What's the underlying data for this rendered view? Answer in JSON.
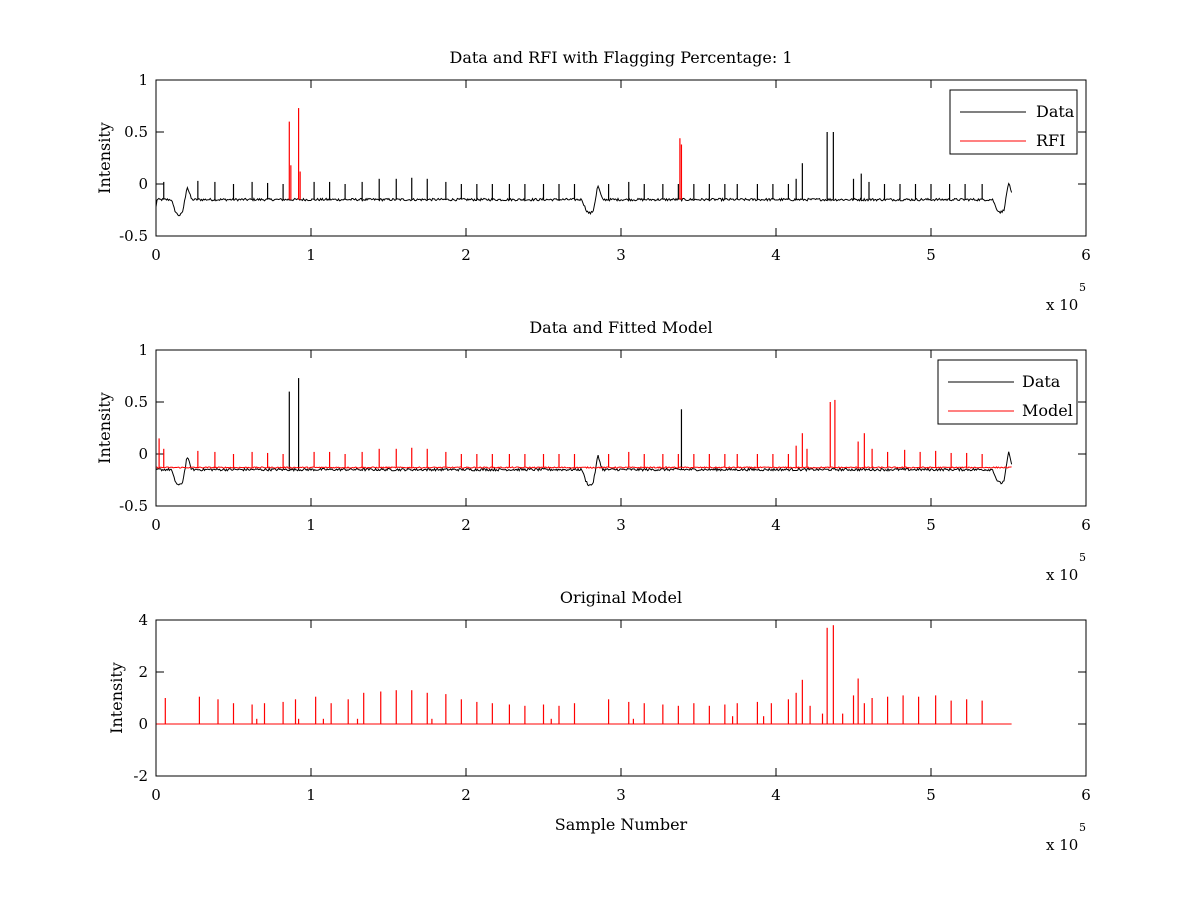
{
  "chart_data": [
    {
      "type": "line",
      "title": "Data and RFI with Flagging Percentage: 1",
      "xlabel": "",
      "ylabel": "Intensity",
      "xlim": [
        0,
        6
      ],
      "ylim": [
        -0.5,
        1
      ],
      "xticks": [
        "0",
        "1",
        "2",
        "3",
        "4",
        "5",
        "6"
      ],
      "yticks": [
        "-0.5",
        "0",
        "0.5",
        "1"
      ],
      "x_multiplier": "x 10",
      "x_exponent": "5",
      "grid": false,
      "legend_position": "top-right",
      "baseline": -0.15,
      "series": [
        {
          "name": "Data",
          "color": "#000000",
          "spikes": [
            [
              0.05,
              0.02
            ],
            [
              0.27,
              0.03
            ],
            [
              0.38,
              0.02
            ],
            [
              0.5,
              0.0
            ],
            [
              0.62,
              0.02
            ],
            [
              0.72,
              0.01
            ],
            [
              0.82,
              0.0
            ],
            [
              1.02,
              0.02
            ],
            [
              1.12,
              0.02
            ],
            [
              1.22,
              0.0
            ],
            [
              1.33,
              0.02
            ],
            [
              1.44,
              0.05
            ],
            [
              1.55,
              0.05
            ],
            [
              1.65,
              0.06
            ],
            [
              1.75,
              0.05
            ],
            [
              1.87,
              0.02
            ],
            [
              1.97,
              0.0
            ],
            [
              2.07,
              0.0
            ],
            [
              2.17,
              0.0
            ],
            [
              2.28,
              0.0
            ],
            [
              2.38,
              0.0
            ],
            [
              2.5,
              0.0
            ],
            [
              2.6,
              0.0
            ],
            [
              2.7,
              0.0
            ],
            [
              2.92,
              0.0
            ],
            [
              3.05,
              0.02
            ],
            [
              3.15,
              0.0
            ],
            [
              3.27,
              0.0
            ],
            [
              3.37,
              0.0
            ],
            [
              3.47,
              0.0
            ],
            [
              3.57,
              0.0
            ],
            [
              3.67,
              0.0
            ],
            [
              3.75,
              0.0
            ],
            [
              3.88,
              0.0
            ],
            [
              3.98,
              0.0
            ],
            [
              4.08,
              0.0
            ],
            [
              4.13,
              0.05
            ],
            [
              4.17,
              0.2
            ],
            [
              4.33,
              0.5
            ],
            [
              4.37,
              0.5
            ],
            [
              4.5,
              0.05
            ],
            [
              4.55,
              0.1
            ],
            [
              4.6,
              0.02
            ],
            [
              4.7,
              0.0
            ],
            [
              4.8,
              0.0
            ],
            [
              4.9,
              0.0
            ],
            [
              5.0,
              0.0
            ],
            [
              5.12,
              0.0
            ],
            [
              5.22,
              0.0
            ],
            [
              5.33,
              0.0
            ]
          ],
          "dips": [
            [
              0.15,
              -0.3
            ],
            [
              2.8,
              -0.28
            ],
            [
              5.45,
              -0.27
            ]
          ],
          "humps": [
            [
              0.2,
              -0.02
            ],
            [
              2.85,
              -0.01
            ],
            [
              5.5,
              0.02
            ]
          ]
        },
        {
          "name": "RFI",
          "color": "#ff0000",
          "spikes": [
            [
              0.86,
              0.6
            ],
            [
              0.87,
              0.18
            ],
            [
              0.92,
              0.73
            ],
            [
              0.93,
              0.12
            ],
            [
              3.38,
              0.44
            ],
            [
              3.39,
              0.38
            ]
          ]
        }
      ]
    },
    {
      "type": "line",
      "title": "Data and Fitted Model",
      "xlabel": "",
      "ylabel": "Intensity",
      "xlim": [
        0,
        6
      ],
      "ylim": [
        -0.5,
        1
      ],
      "xticks": [
        "0",
        "1",
        "2",
        "3",
        "4",
        "5",
        "6"
      ],
      "yticks": [
        "-0.5",
        "0",
        "0.5",
        "1"
      ],
      "x_multiplier": "x 10",
      "x_exponent": "5",
      "grid": false,
      "legend_position": "top-right",
      "baseline": -0.15,
      "series": [
        {
          "name": "Data",
          "color": "#000000",
          "spikes": [
            [
              0.86,
              0.6
            ],
            [
              0.92,
              0.73
            ],
            [
              3.39,
              0.43
            ]
          ],
          "dips": [
            [
              0.15,
              -0.3
            ],
            [
              2.8,
              -0.3
            ],
            [
              5.45,
              -0.28
            ]
          ],
          "humps": [
            [
              0.2,
              -0.02
            ],
            [
              2.85,
              -0.01
            ],
            [
              5.5,
              0.02
            ]
          ]
        },
        {
          "name": "Model",
          "color": "#ff0000",
          "baseline": -0.13,
          "spikes": [
            [
              0.02,
              0.15
            ],
            [
              0.05,
              0.05
            ],
            [
              0.27,
              0.03
            ],
            [
              0.38,
              0.02
            ],
            [
              0.5,
              0.0
            ],
            [
              0.62,
              0.02
            ],
            [
              0.72,
              0.01
            ],
            [
              0.82,
              0.0
            ],
            [
              1.02,
              0.02
            ],
            [
              1.12,
              0.02
            ],
            [
              1.22,
              0.0
            ],
            [
              1.33,
              0.02
            ],
            [
              1.44,
              0.05
            ],
            [
              1.55,
              0.05
            ],
            [
              1.65,
              0.06
            ],
            [
              1.75,
              0.05
            ],
            [
              1.87,
              0.02
            ],
            [
              1.97,
              0.0
            ],
            [
              2.07,
              0.0
            ],
            [
              2.17,
              0.0
            ],
            [
              2.28,
              0.0
            ],
            [
              2.38,
              0.0
            ],
            [
              2.5,
              0.0
            ],
            [
              2.6,
              0.0
            ],
            [
              2.7,
              0.0
            ],
            [
              2.92,
              0.0
            ],
            [
              3.05,
              0.02
            ],
            [
              3.15,
              0.0
            ],
            [
              3.27,
              0.0
            ],
            [
              3.37,
              0.0
            ],
            [
              3.47,
              0.0
            ],
            [
              3.57,
              0.0
            ],
            [
              3.67,
              0.0
            ],
            [
              3.75,
              0.0
            ],
            [
              3.88,
              0.0
            ],
            [
              3.98,
              0.0
            ],
            [
              4.08,
              0.0
            ],
            [
              4.13,
              0.08
            ],
            [
              4.17,
              0.2
            ],
            [
              4.2,
              0.05
            ],
            [
              4.35,
              0.5
            ],
            [
              4.38,
              0.52
            ],
            [
              4.53,
              0.12
            ],
            [
              4.57,
              0.2
            ],
            [
              4.62,
              0.05
            ],
            [
              4.72,
              0.02
            ],
            [
              4.83,
              0.04
            ],
            [
              4.93,
              0.02
            ],
            [
              5.03,
              0.03
            ],
            [
              5.13,
              0.01
            ],
            [
              5.23,
              0.01
            ],
            [
              5.33,
              0.0
            ]
          ]
        }
      ]
    },
    {
      "type": "line",
      "title": "Original Model",
      "xlabel": "Sample Number",
      "ylabel": "Intensity",
      "xlim": [
        0,
        6
      ],
      "ylim": [
        -2,
        4
      ],
      "xticks": [
        "0",
        "1",
        "2",
        "3",
        "4",
        "5",
        "6"
      ],
      "yticks": [
        "-2",
        "0",
        "2",
        "4"
      ],
      "x_multiplier": "x 10",
      "x_exponent": "5",
      "grid": false,
      "baseline": 0,
      "series": [
        {
          "color": "#ff0000",
          "spikes": [
            [
              0.06,
              1.0
            ],
            [
              0.28,
              1.05
            ],
            [
              0.4,
              0.95
            ],
            [
              0.5,
              0.8
            ],
            [
              0.62,
              0.75
            ],
            [
              0.65,
              0.2
            ],
            [
              0.7,
              0.8
            ],
            [
              0.82,
              0.85
            ],
            [
              0.9,
              0.95
            ],
            [
              0.92,
              0.2
            ],
            [
              1.03,
              1.05
            ],
            [
              1.08,
              0.2
            ],
            [
              1.13,
              0.8
            ],
            [
              1.24,
              0.95
            ],
            [
              1.3,
              0.2
            ],
            [
              1.34,
              1.2
            ],
            [
              1.45,
              1.25
            ],
            [
              1.55,
              1.3
            ],
            [
              1.65,
              1.3
            ],
            [
              1.75,
              1.2
            ],
            [
              1.78,
              0.2
            ],
            [
              1.87,
              1.15
            ],
            [
              1.97,
              0.95
            ],
            [
              2.07,
              0.85
            ],
            [
              2.17,
              0.8
            ],
            [
              2.28,
              0.75
            ],
            [
              2.38,
              0.7
            ],
            [
              2.5,
              0.75
            ],
            [
              2.55,
              0.2
            ],
            [
              2.6,
              0.7
            ],
            [
              2.7,
              0.8
            ],
            [
              2.92,
              0.95
            ],
            [
              3.05,
              0.85
            ],
            [
              3.08,
              0.2
            ],
            [
              3.15,
              0.8
            ],
            [
              3.27,
              0.75
            ],
            [
              3.37,
              0.7
            ],
            [
              3.47,
              0.8
            ],
            [
              3.57,
              0.7
            ],
            [
              3.67,
              0.75
            ],
            [
              3.72,
              0.3
            ],
            [
              3.75,
              0.8
            ],
            [
              3.88,
              0.85
            ],
            [
              3.92,
              0.3
            ],
            [
              3.97,
              0.8
            ],
            [
              4.08,
              0.95
            ],
            [
              4.13,
              1.2
            ],
            [
              4.17,
              1.7
            ],
            [
              4.22,
              0.7
            ],
            [
              4.3,
              0.4
            ],
            [
              4.33,
              3.7
            ],
            [
              4.37,
              3.8
            ],
            [
              4.43,
              0.4
            ],
            [
              4.5,
              1.1
            ],
            [
              4.53,
              1.75
            ],
            [
              4.57,
              0.8
            ],
            [
              4.62,
              1.0
            ],
            [
              4.72,
              1.05
            ],
            [
              4.82,
              1.1
            ],
            [
              4.92,
              1.05
            ],
            [
              5.03,
              1.1
            ],
            [
              5.13,
              0.9
            ],
            [
              5.23,
              0.95
            ],
            [
              5.33,
              0.9
            ]
          ]
        }
      ]
    }
  ]
}
